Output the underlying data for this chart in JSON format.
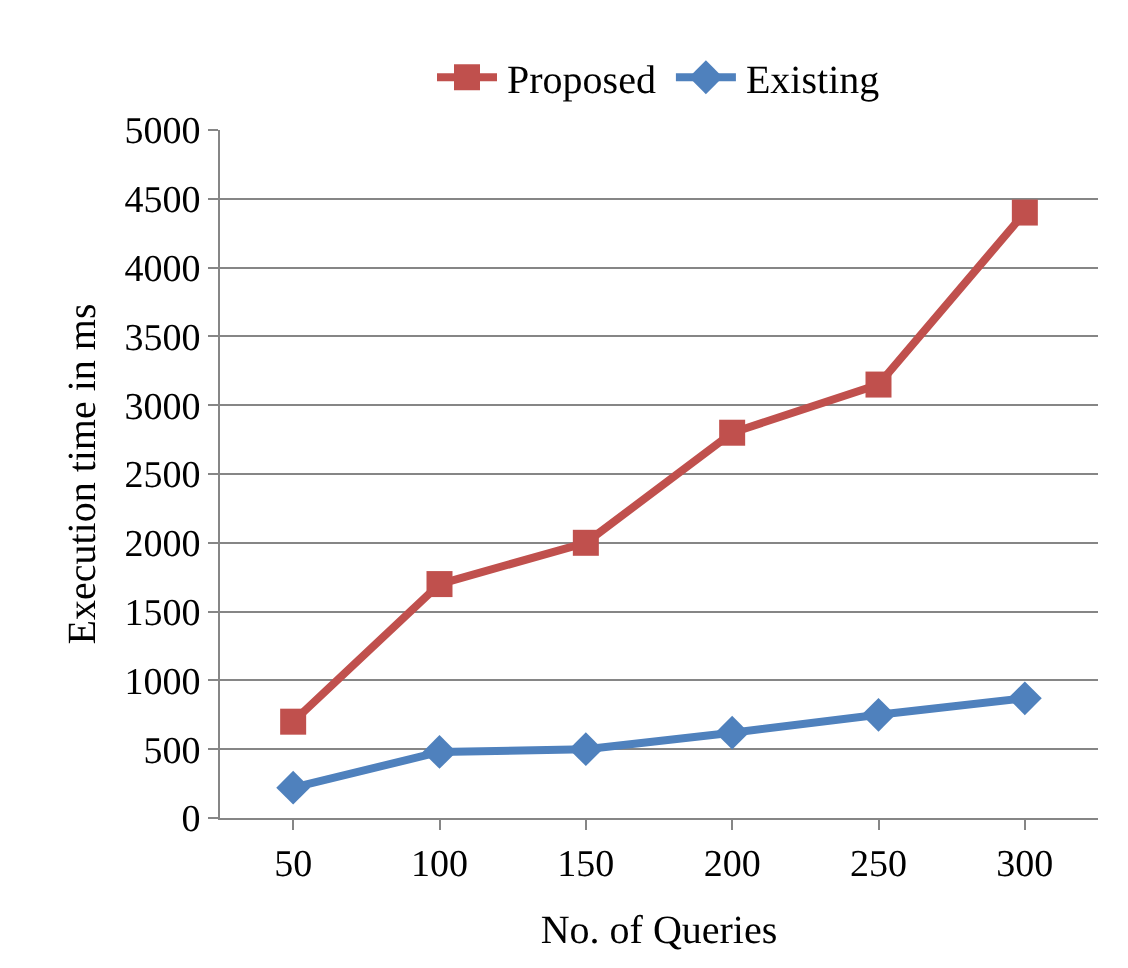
{
  "chart_data": {
    "type": "line",
    "xlabel": "No. of Queries",
    "ylabel": "Execution time in ms",
    "categories": [
      "50",
      "100",
      "150",
      "200",
      "250",
      "300"
    ],
    "series": [
      {
        "name": "Proposed",
        "color": "#c0504d",
        "marker": "square",
        "values": [
          700,
          1700,
          2000,
          2800,
          3150,
          4400
        ]
      },
      {
        "name": "Existing",
        "color": "#4f81bd",
        "marker": "diamond",
        "values": [
          220,
          480,
          500,
          620,
          750,
          870
        ]
      }
    ],
    "ylim": [
      0,
      5000
    ],
    "yticks": [
      0,
      500,
      1000,
      1500,
      2000,
      2500,
      3000,
      3500,
      4000,
      4500,
      5000
    ],
    "grid": "y",
    "legend": "top",
    "line_style": "solid"
  }
}
